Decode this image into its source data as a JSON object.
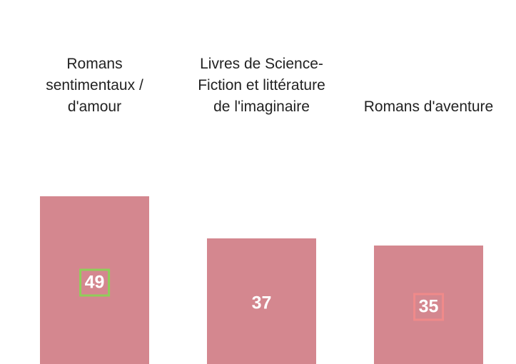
{
  "chart_data": {
    "type": "bar",
    "categories": [
      "Romans sentimentaux / d'amour",
      "Livres de Science-Fiction et littérature de l'imaginaire",
      "Romans d'aventure"
    ],
    "values": [
      49,
      37,
      35
    ],
    "color": "#d4878f"
  }
}
